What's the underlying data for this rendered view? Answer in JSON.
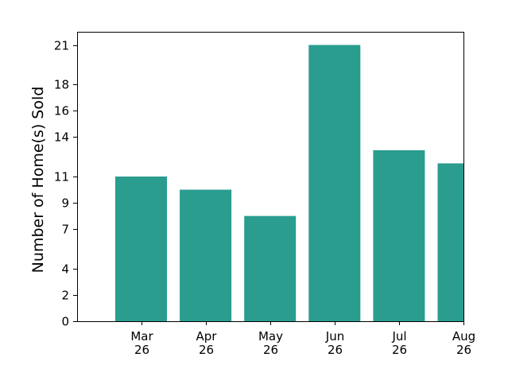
{
  "chart_data": {
    "type": "bar",
    "title": "",
    "xlabel": "",
    "ylabel": "Number of Home(s) Sold",
    "categories": [
      [
        "Mar",
        "26"
      ],
      [
        "Apr",
        "26"
      ],
      [
        "May",
        "26"
      ],
      [
        "Jun",
        "26"
      ],
      [
        "Jul",
        "26"
      ],
      [
        "Aug",
        "26"
      ]
    ],
    "values": [
      11,
      10,
      8,
      21,
      13,
      12
    ],
    "yticks": [
      0,
      2,
      4,
      7,
      9,
      11,
      14,
      16,
      18,
      21
    ],
    "ylim": [
      0,
      22
    ],
    "bar_color": "#2a9d8f",
    "grid": false,
    "legend": "none"
  }
}
